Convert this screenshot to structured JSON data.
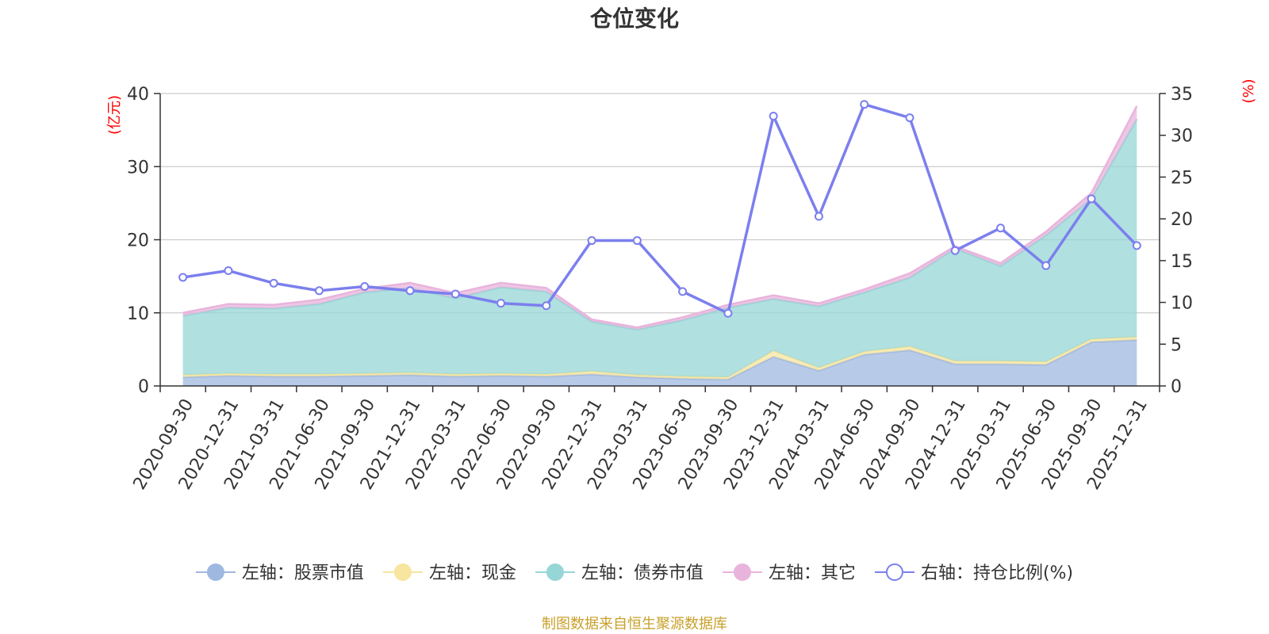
{
  "chart_data": {
    "type": "area",
    "title": "仓位变化",
    "left_axis_unit": "(亿元)",
    "right_axis_unit": "(%)",
    "categories": [
      "2020-09-30",
      "2020-12-31",
      "2021-03-31",
      "2021-06-30",
      "2021-09-30",
      "2021-12-31",
      "2022-03-31",
      "2022-06-30",
      "2022-09-30",
      "2022-12-31",
      "2023-03-31",
      "2023-06-30",
      "2023-09-30",
      "2023-12-31",
      "2024-03-31",
      "2024-06-30",
      "2024-09-30",
      "2024-12-31",
      "2025-03-31",
      "2025-06-30",
      "2025-09-30",
      "2025-12-31"
    ],
    "left_ylim": [
      0,
      40
    ],
    "left_ticks": [
      0,
      10,
      20,
      30,
      40
    ],
    "right_ylim": [
      0,
      35
    ],
    "right_ticks": [
      0,
      5,
      10,
      15,
      20,
      25,
      30,
      35
    ],
    "grid": true,
    "legend_position": "bottom",
    "stacked_series": [
      {
        "name": "左轴：股票市值",
        "color": "#9fb8e0",
        "values": [
          1.2,
          1.4,
          1.3,
          1.3,
          1.4,
          1.5,
          1.3,
          1.4,
          1.3,
          1.6,
          1.2,
          1.0,
          0.9,
          4.0,
          2.1,
          4.3,
          4.9,
          3.0,
          3.0,
          2.9,
          6.0,
          6.3
        ]
      },
      {
        "name": "左轴：现金",
        "color": "#f7e5a0",
        "values": [
          0.3,
          0.3,
          0.3,
          0.3,
          0.3,
          0.3,
          0.3,
          0.3,
          0.3,
          0.4,
          0.3,
          0.3,
          0.3,
          0.8,
          0.4,
          0.4,
          0.5,
          0.4,
          0.4,
          0.4,
          0.4,
          0.4
        ]
      },
      {
        "name": "左轴：债券市值",
        "color": "#96d6d6",
        "values": [
          8.1,
          9.0,
          9.0,
          9.6,
          11.1,
          11.6,
          10.4,
          11.8,
          11.3,
          6.8,
          6.2,
          7.7,
          9.5,
          7.1,
          8.4,
          8.1,
          9.4,
          15.4,
          13.0,
          17.3,
          19.2,
          29.8
        ]
      },
      {
        "name": "左轴：其它",
        "color": "#e8b4dc",
        "values": [
          0.4,
          0.5,
          0.5,
          0.6,
          0.5,
          0.7,
          0.7,
          0.6,
          0.5,
          0.3,
          0.3,
          0.4,
          0.4,
          0.5,
          0.4,
          0.4,
          0.6,
          0.3,
          0.4,
          0.5,
          0.8,
          1.8
        ]
      }
    ],
    "line_series": {
      "name": "右轴：持仓比例(%)",
      "color": "#7b7fee",
      "values": [
        13.0,
        13.8,
        12.3,
        11.4,
        11.9,
        11.4,
        11.0,
        9.9,
        9.6,
        17.4,
        17.4,
        11.3,
        8.7,
        32.3,
        20.3,
        33.7,
        32.1,
        16.2,
        18.9,
        14.4,
        22.4,
        16.8
      ]
    }
  },
  "source_note": "制图数据来自恒生聚源数据库"
}
